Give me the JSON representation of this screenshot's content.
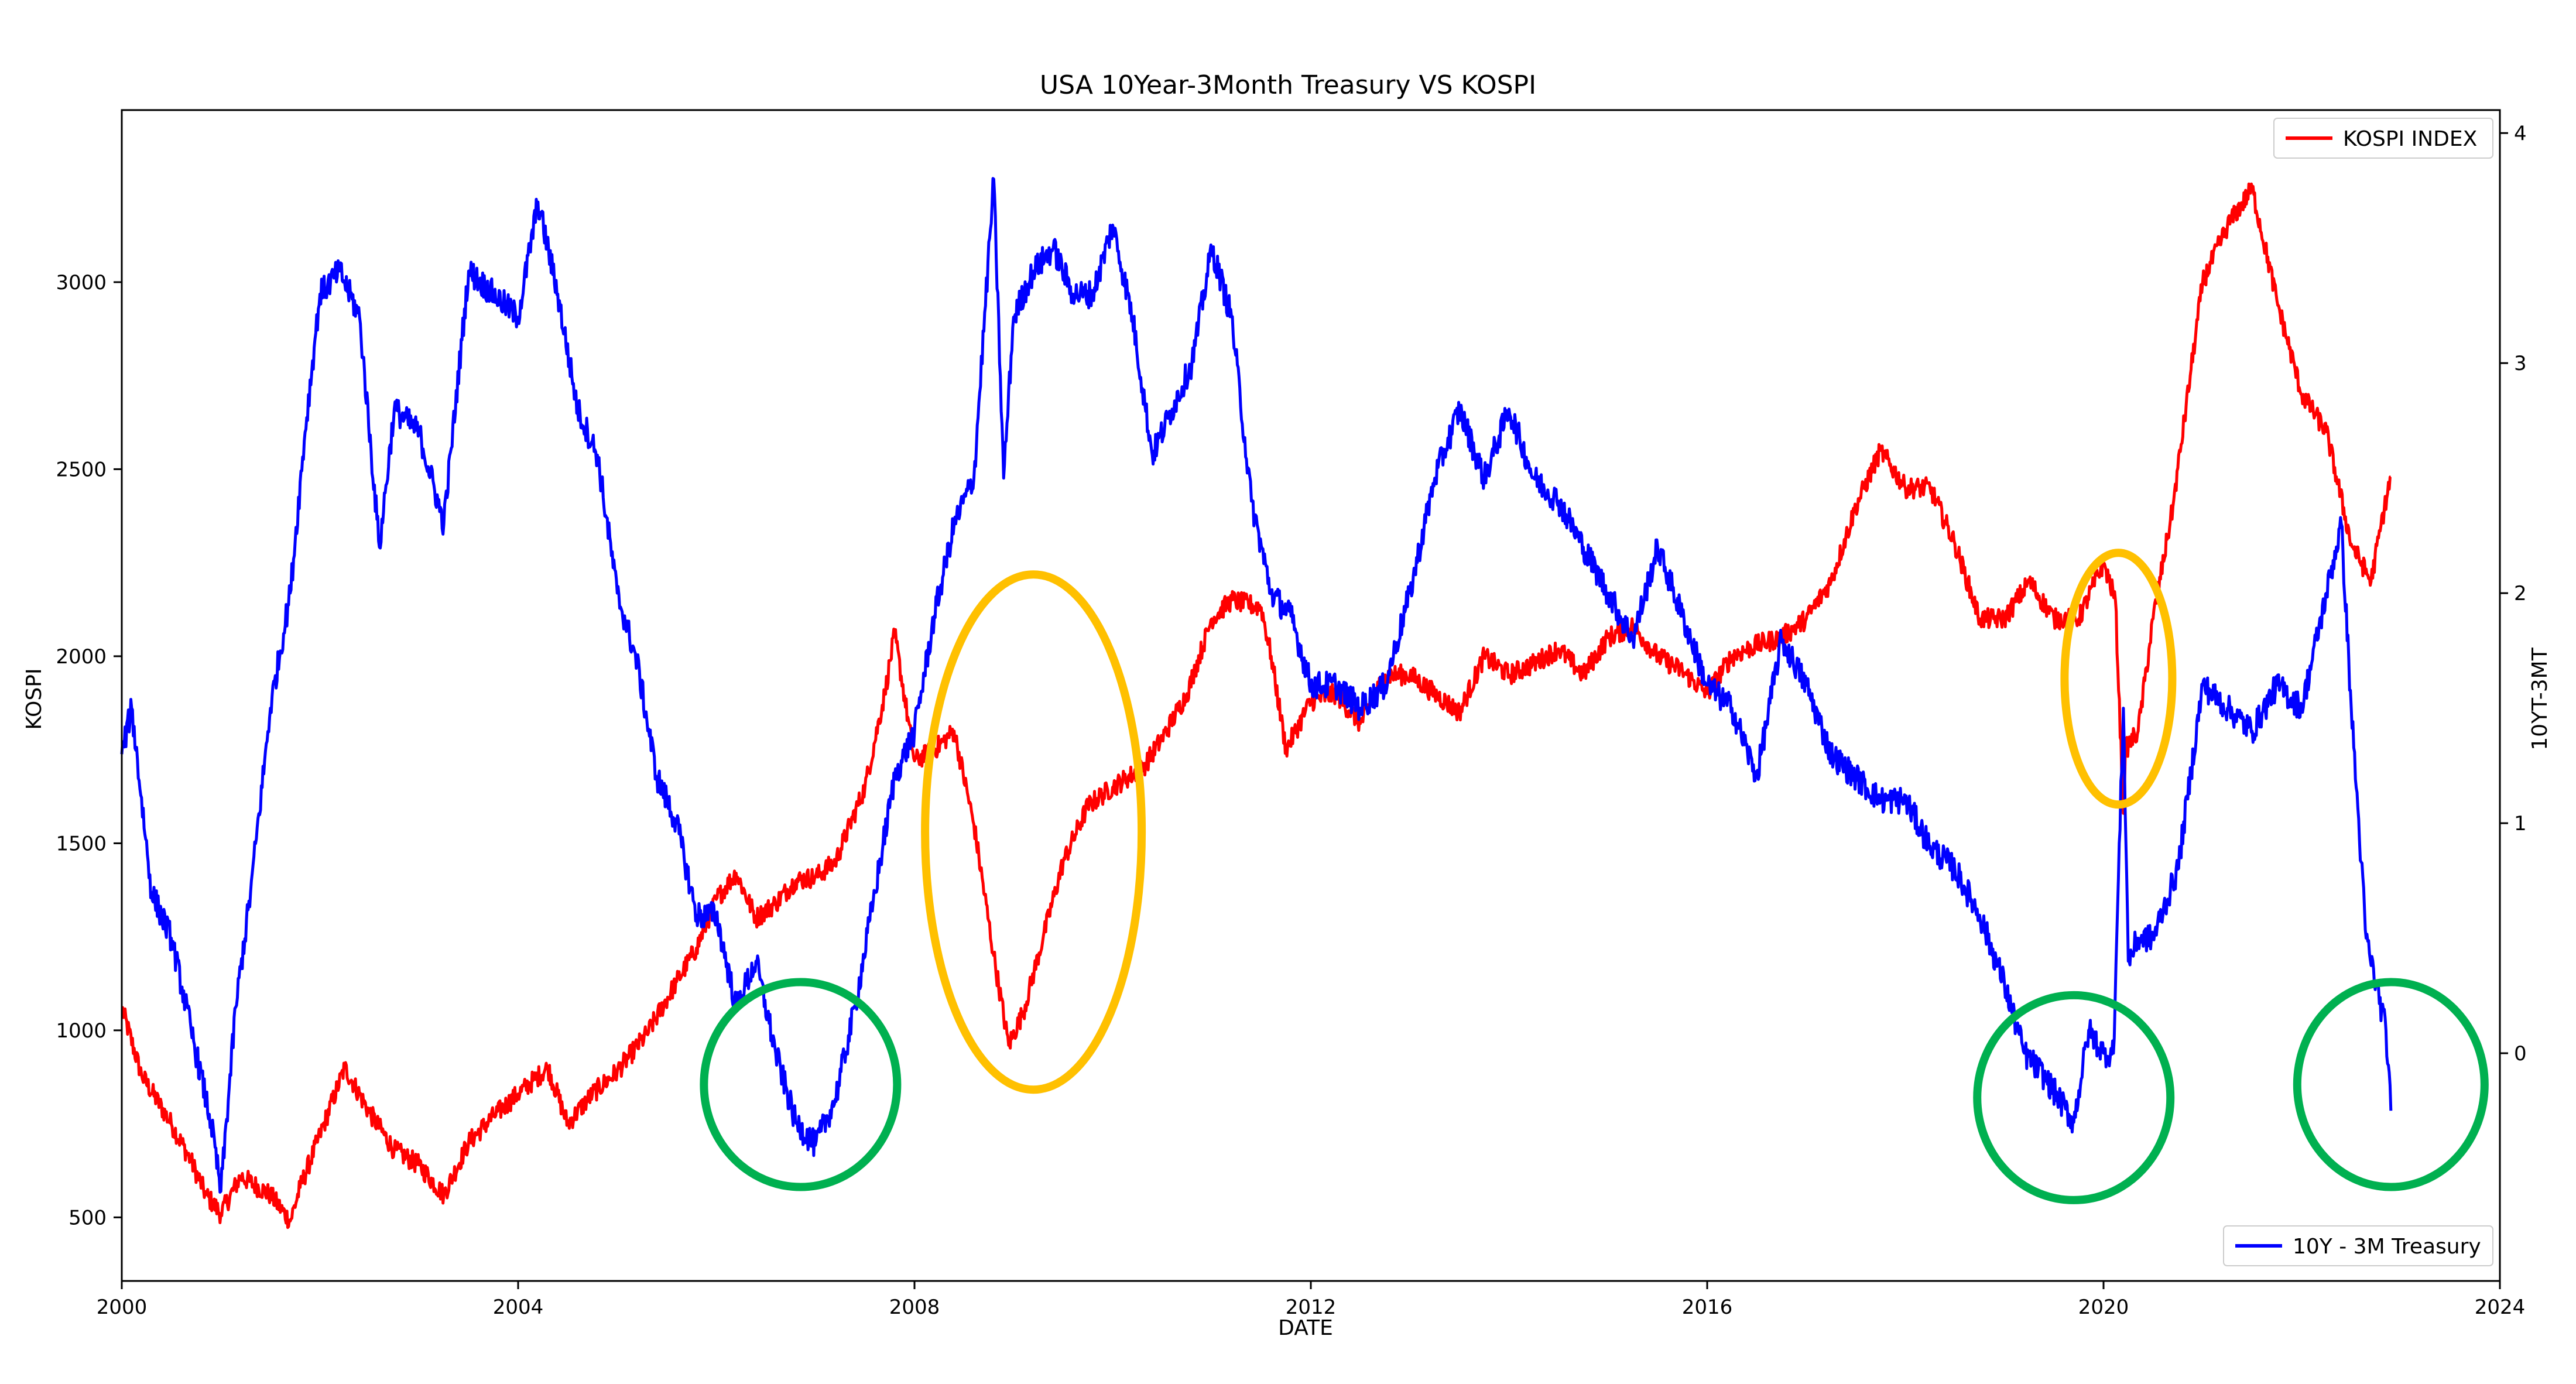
{
  "chart_data": {
    "type": "line",
    "title": "USA 10Year-3Month Treasury VS KOSPI",
    "xlabel": "DATE",
    "ylabel_left": "KOSPI",
    "ylabel_right": "10YT-3MT",
    "xlim": [
      2000.0,
      2024.0
    ],
    "ylim_left": [
      330,
      3460
    ],
    "ylim_right": [
      -0.99,
      4.1
    ],
    "x_ticks": [
      "2000",
      "2004",
      "2008",
      "2012",
      "2016",
      "2020",
      "2024"
    ],
    "x_tick_values": [
      2000,
      2004,
      2008,
      2012,
      2016,
      2020,
      2024
    ],
    "y_left_ticks": [
      "500",
      "1000",
      "1500",
      "2000",
      "2500",
      "3000"
    ],
    "y_left_tick_values": [
      500,
      1000,
      1500,
      2000,
      2500,
      3000
    ],
    "y_right_ticks": [
      "0",
      "1",
      "2",
      "3",
      "4"
    ],
    "y_right_tick_values": [
      0,
      1,
      2,
      3,
      4
    ],
    "grid": false,
    "legend_top": {
      "placement": "top-right",
      "label": "KOSPI INDEX"
    },
    "legend_bottom": {
      "placement": "bottom-right",
      "label": "10Y - 3M Treasury"
    },
    "series": [
      {
        "name": "KOSPI INDEX",
        "axis": "left",
        "color": "#ff0000",
        "x": [
          2000.0,
          2000.2,
          2000.5,
          2000.7,
          2000.85,
          2001.0,
          2001.2,
          2001.5,
          2001.7,
          2001.8,
          2002.0,
          2002.25,
          2002.5,
          2002.75,
          2003.0,
          2003.25,
          2003.5,
          2003.75,
          2004.0,
          2004.3,
          2004.5,
          2004.75,
          2005.0,
          2005.3,
          2005.6,
          2005.8,
          2006.0,
          2006.2,
          2006.4,
          2006.6,
          2006.8,
          2007.0,
          2007.2,
          2007.5,
          2007.7,
          2007.8,
          2008.0,
          2008.2,
          2008.4,
          2008.6,
          2008.8,
          2008.95,
          2009.1,
          2009.3,
          2009.5,
          2009.75,
          2010.0,
          2010.3,
          2010.5,
          2010.75,
          2011.0,
          2011.2,
          2011.5,
          2011.6,
          2011.75,
          2012.0,
          2012.25,
          2012.5,
          2012.75,
          2013.0,
          2013.25,
          2013.5,
          2013.75,
          2014.0,
          2014.25,
          2014.5,
          2014.75,
          2015.0,
          2015.25,
          2015.5,
          2015.75,
          2016.0,
          2016.25,
          2016.5,
          2016.75,
          2017.0,
          2017.25,
          2017.5,
          2017.75,
          2018.0,
          2018.25,
          2018.5,
          2018.75,
          2019.0,
          2019.25,
          2019.5,
          2019.75,
          2020.0,
          2020.12,
          2020.2,
          2020.22,
          2020.35,
          2020.5,
          2020.7,
          2021.0,
          2021.25,
          2021.5,
          2021.75,
          2022.0,
          2022.25,
          2022.5,
          2022.7,
          2022.8,
          2022.9
        ],
        "y": [
          1060,
          880,
          750,
          650,
          560,
          510,
          610,
          560,
          490,
          580,
          720,
          900,
          780,
          680,
          640,
          560,
          700,
          770,
          830,
          900,
          750,
          830,
          890,
          990,
          1130,
          1220,
          1350,
          1420,
          1300,
          1340,
          1400,
          1410,
          1450,
          1650,
          1900,
          2060,
          1720,
          1750,
          1800,
          1550,
          1200,
          960,
          1050,
          1250,
          1450,
          1600,
          1650,
          1700,
          1780,
          1900,
          2100,
          2150,
          2130,
          2000,
          1750,
          1880,
          1900,
          1820,
          1950,
          1950,
          1900,
          1850,
          2000,
          1950,
          1980,
          2020,
          1950,
          2050,
          2080,
          2000,
          1960,
          1900,
          2000,
          2030,
          2050,
          2100,
          2200,
          2400,
          2550,
          2450,
          2450,
          2300,
          2100,
          2100,
          2200,
          2100,
          2100,
          2250,
          2150,
          1580,
          1750,
          1800,
          2100,
          2400,
          3000,
          3150,
          3250,
          2950,
          2700,
          2600,
          2300,
          2200,
          2350,
          2480
        ]
      },
      {
        "name": "10Y - 3M Treasury",
        "axis": "right",
        "color": "#0000ff",
        "x": [
          2000.0,
          2000.1,
          2000.3,
          2000.5,
          2000.7,
          2000.9,
          2001.0,
          2001.15,
          2001.3,
          2001.5,
          2001.7,
          2001.85,
          2002.0,
          2002.2,
          2002.4,
          2002.6,
          2002.75,
          2003.0,
          2003.25,
          2003.5,
          2003.75,
          2004.0,
          2004.2,
          2004.4,
          2004.6,
          2004.8,
          2005.0,
          2005.2,
          2005.4,
          2005.6,
          2005.8,
          2006.0,
          2006.2,
          2006.4,
          2006.6,
          2006.8,
          2007.0,
          2007.2,
          2007.4,
          2007.6,
          2007.8,
          2008.0,
          2008.2,
          2008.4,
          2008.6,
          2008.8,
          2008.9,
          2009.0,
          2009.2,
          2009.4,
          2009.6,
          2009.8,
          2010.0,
          2010.2,
          2010.4,
          2010.6,
          2010.8,
          2011.0,
          2011.2,
          2011.4,
          2011.6,
          2011.8,
          2012.0,
          2012.25,
          2012.5,
          2012.75,
          2013.0,
          2013.25,
          2013.5,
          2013.75,
          2014.0,
          2014.25,
          2014.5,
          2014.75,
          2015.0,
          2015.25,
          2015.5,
          2015.75,
          2016.0,
          2016.25,
          2016.5,
          2016.75,
          2017.0,
          2017.25,
          2017.5,
          2017.75,
          2018.0,
          2018.25,
          2018.5,
          2018.75,
          2019.0,
          2019.2,
          2019.4,
          2019.55,
          2019.7,
          2019.85,
          2020.0,
          2020.1,
          2020.2,
          2020.25,
          2020.35,
          2020.5,
          2020.75,
          2021.0,
          2021.25,
          2021.5,
          2021.75,
          2022.0,
          2022.25,
          2022.4,
          2022.5,
          2022.65,
          2022.75,
          2022.85,
          2022.9
        ],
        "y": [
          1.3,
          1.5,
          0.7,
          0.5,
          0.1,
          -0.3,
          -0.6,
          0.2,
          0.7,
          1.5,
          2.0,
          2.7,
          3.3,
          3.4,
          3.2,
          2.2,
          2.8,
          2.7,
          2.3,
          3.4,
          3.3,
          3.2,
          3.7,
          3.3,
          2.8,
          2.6,
          2.0,
          1.7,
          1.2,
          1.0,
          0.6,
          0.6,
          0.2,
          0.4,
          0.0,
          -0.3,
          -0.4,
          -0.2,
          0.2,
          0.7,
          1.2,
          1.4,
          1.9,
          2.3,
          2.5,
          3.8,
          2.5,
          3.2,
          3.4,
          3.5,
          3.3,
          3.3,
          3.6,
          3.2,
          2.6,
          2.8,
          3.0,
          3.5,
          3.2,
          2.4,
          2.0,
          1.9,
          1.6,
          1.6,
          1.5,
          1.6,
          2.0,
          2.5,
          2.8,
          2.5,
          2.8,
          2.5,
          2.4,
          2.2,
          2.0,
          1.8,
          2.2,
          1.9,
          1.6,
          1.5,
          1.2,
          1.8,
          1.6,
          1.3,
          1.2,
          1.1,
          1.1,
          0.9,
          0.8,
          0.6,
          0.3,
          0.0,
          -0.1,
          -0.2,
          -0.3,
          0.1,
          0.0,
          0.0,
          1.5,
          0.4,
          0.5,
          0.5,
          0.8,
          1.6,
          1.5,
          1.4,
          1.6,
          1.5,
          2.0,
          2.3,
          1.5,
          0.5,
          0.3,
          0.1,
          -0.25
        ]
      }
    ],
    "annotations": [
      {
        "shape": "ellipse",
        "color": "#00b050",
        "center_x": 2006.85,
        "center_y_left": 855
      },
      {
        "shape": "ellipse",
        "color": "#ffc000",
        "center_x": 2009.2,
        "center_y_left": 1530
      },
      {
        "shape": "ellipse",
        "color": "#00b050",
        "center_x": 2019.7,
        "center_y_left": 820
      },
      {
        "shape": "ellipse",
        "color": "#ffc000",
        "center_x": 2020.15,
        "center_y_left": 1940
      },
      {
        "shape": "ellipse",
        "color": "#00b050",
        "center_x": 2022.9,
        "center_y_left": 855
      }
    ]
  }
}
